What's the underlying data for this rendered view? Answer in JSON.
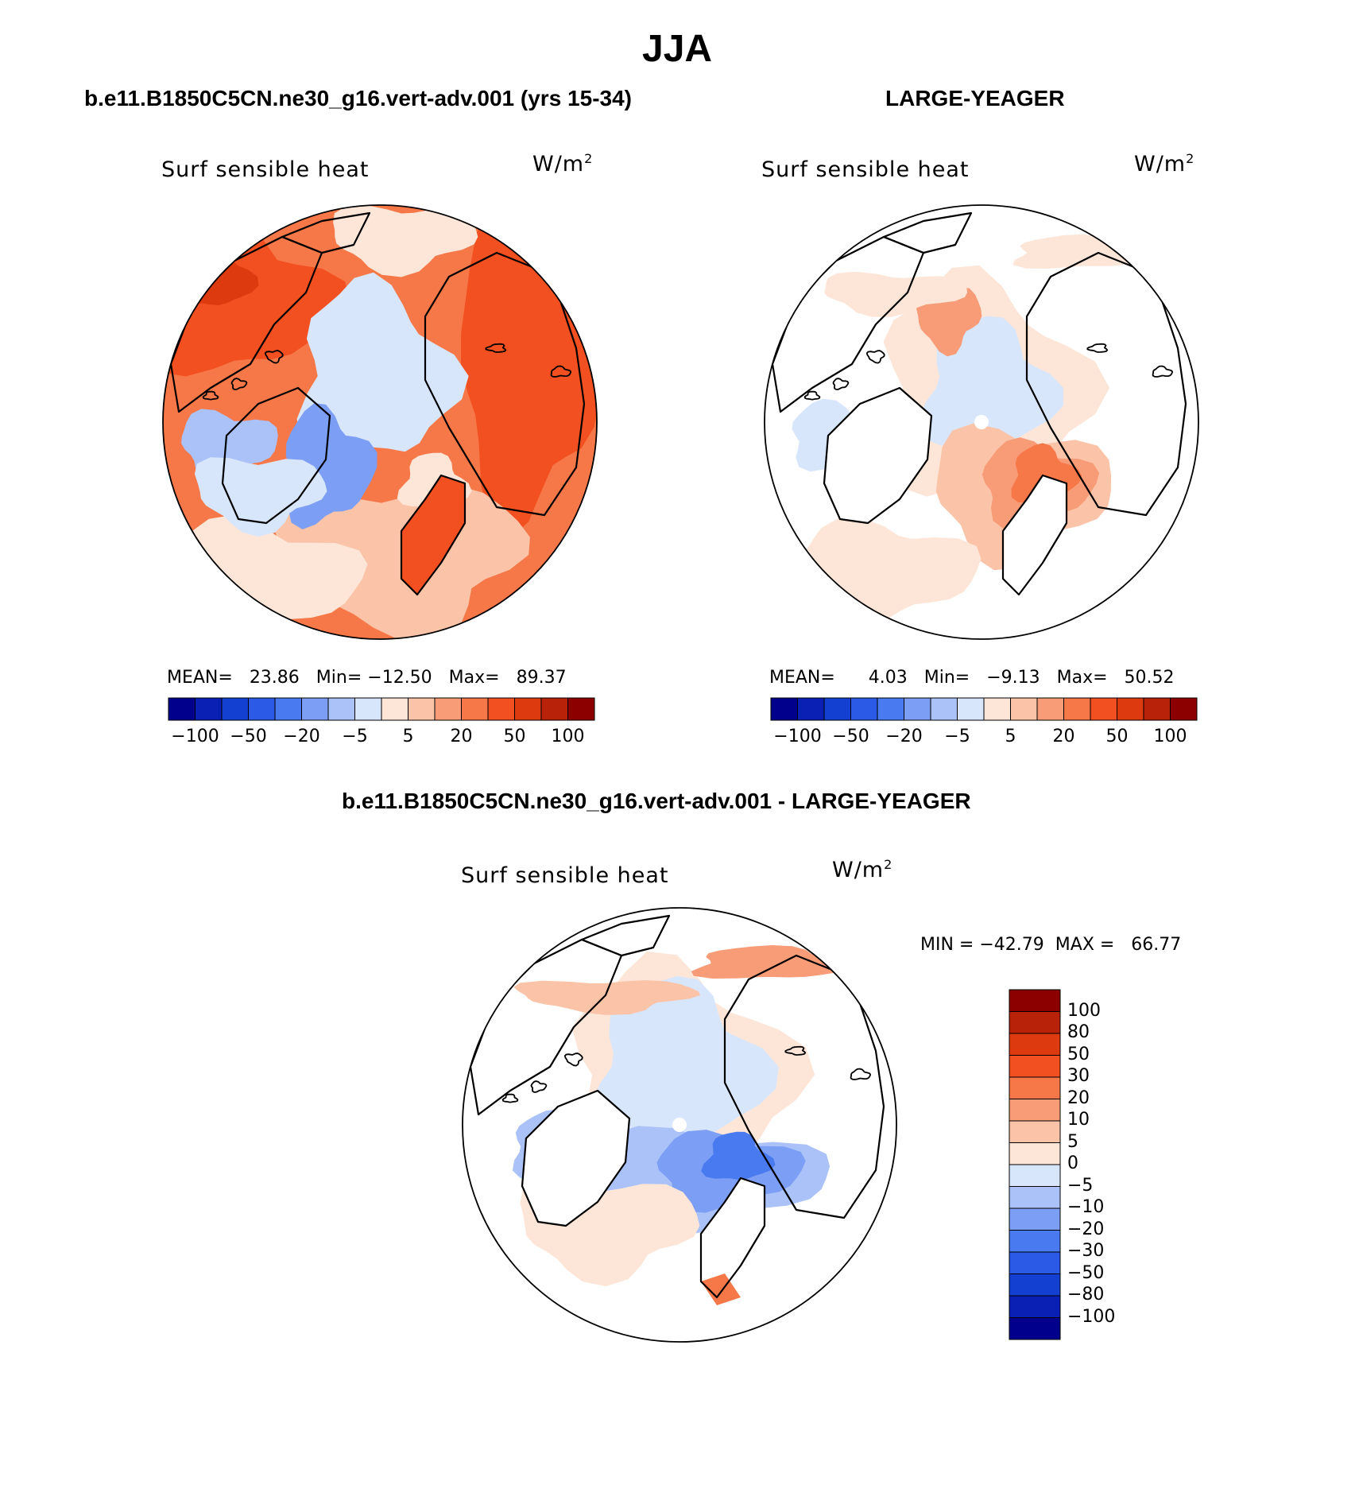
{
  "figure": {
    "title": "JJA",
    "subtitle_left": "b.e11.B1850C5CN.ne30_g16.vert-adv.001 (yrs 15-34)",
    "subtitle_right": "LARGE-YEAGER",
    "subtitle_diff": "b.e11.B1850C5CN.ne30_g16.vert-adv.001 - LARGE-YEAGER"
  },
  "palette": {
    "colors": [
      "#00008c",
      "#0a20b4",
      "#1440d2",
      "#2a5ae6",
      "#4a7af0",
      "#7c9ef4",
      "#aac2f8",
      "#d8e6fc",
      "#fde6d8",
      "#fbc4a8",
      "#f89c78",
      "#f67848",
      "#f25020",
      "#de3a10",
      "#b82208",
      "#8c0000"
    ],
    "land_mask": "#ffffff",
    "coast": "#000000"
  },
  "chart_data": [
    {
      "type": "heatmap",
      "projection": "north-polar-stereographic",
      "variable": "Surf sensible heat",
      "units": "W/m",
      "units_exp": "2",
      "stats": {
        "mean_label": "MEAN=",
        "mean": "23.86",
        "min_label": "Min=",
        "min": "−12.50",
        "max_label": "Max=",
        "max": "89.37"
      },
      "colorbar_ticks": [
        "−100",
        "−50",
        "−20",
        "−5",
        "5",
        "20",
        "50",
        "100"
      ],
      "pattern": "warm-everywhere"
    },
    {
      "type": "heatmap",
      "projection": "north-polar-stereographic",
      "variable": "Surf sensible heat",
      "units": "W/m",
      "units_exp": "2",
      "stats": {
        "mean_label": "MEAN=",
        "mean": "4.03",
        "min_label": "Min=",
        "min": "−9.13",
        "max_label": "Max=",
        "max": "50.52"
      },
      "colorbar_ticks": [
        "−100",
        "−50",
        "−20",
        "−5",
        "5",
        "20",
        "50",
        "100"
      ],
      "pattern": "ocean-only"
    },
    {
      "type": "heatmap",
      "projection": "north-polar-stereographic",
      "variable": "Surf sensible heat",
      "units": "W/m",
      "units_exp": "2",
      "stats": {
        "min_label": "MIN =",
        "min": "−42.79",
        "max_label": "MAX =",
        "max": "66.77"
      },
      "colorbar_ticks": [
        "100",
        "80",
        "50",
        "30",
        "20",
        "10",
        "5",
        "0",
        "−5",
        "−10",
        "−20",
        "−30",
        "−50",
        "−80",
        "−100"
      ],
      "pattern": "difference"
    }
  ]
}
